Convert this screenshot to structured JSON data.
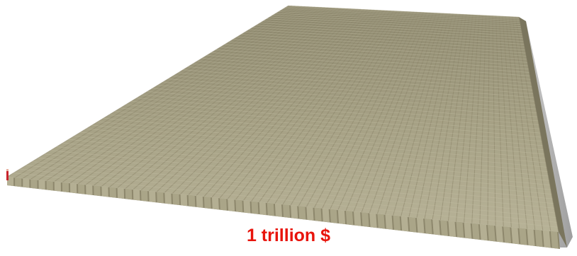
{
  "caption": {
    "text": "1 trillion $"
  },
  "colors": {
    "caption": "#e8140c",
    "money_light": "#b1ac8e",
    "money_dark": "#8a8468",
    "money_top": "#c4bfa3",
    "floor_shadow": "#b8b8b8",
    "person": "#c8232c"
  }
}
